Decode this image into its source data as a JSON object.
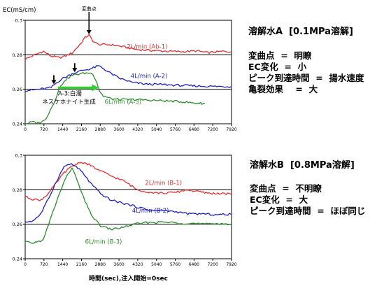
{
  "chart_data": [
    {
      "type": "line",
      "ylabel": "EC(mS/cm)",
      "xlim": [
        0,
        7920
      ],
      "ylim": [
        0.24,
        0.3
      ],
      "x_ticks": [
        0,
        720,
        1440,
        2160,
        2880,
        3600,
        4320,
        5040,
        5760,
        6480,
        7200,
        7920
      ],
      "y_ticks": [
        0.24,
        0.26,
        0.28,
        0.3
      ],
      "y_tick_labels": [
        "0.24",
        "0.26",
        "0.28",
        "0.3"
      ],
      "gridlines_y": [
        0.26,
        0.28
      ],
      "series": [
        {
          "name": "2L/min (Ab-1)",
          "color": "#e03030",
          "label_at": [
            3900,
            0.2835
          ],
          "anchors": [
            [
              0,
              0.2775
            ],
            [
              200,
              0.2788
            ],
            [
              500,
              0.2808
            ],
            [
              700,
              0.282
            ],
            [
              1000,
              0.2792
            ],
            [
              1300,
              0.2783
            ],
            [
              1500,
              0.279
            ],
            [
              1800,
              0.281
            ],
            [
              2100,
              0.286
            ],
            [
              2300,
              0.29
            ],
            [
              2450,
              0.2915
            ],
            [
              2600,
              0.288
            ],
            [
              2800,
              0.286
            ],
            [
              3300,
              0.2858
            ],
            [
              3700,
              0.2848
            ],
            [
              4320,
              0.283
            ],
            [
              5200,
              0.2822
            ],
            [
              6000,
              0.2818
            ],
            [
              6600,
              0.2822
            ],
            [
              7000,
              0.2812
            ],
            [
              7600,
              0.282
            ],
            [
              7900,
              0.2818
            ]
          ]
        },
        {
          "name": "4L/min (A-2)",
          "color": "#2020c0",
          "label_at": [
            4050,
            0.2665
          ],
          "anchors": [
            [
              0,
              0.2592
            ],
            [
              400,
              0.2598
            ],
            [
              800,
              0.2605
            ],
            [
              1000,
              0.261
            ],
            [
              1100,
              0.2625
            ],
            [
              1400,
              0.266
            ],
            [
              1800,
              0.269
            ],
            [
              2200,
              0.271
            ],
            [
              2500,
              0.2718
            ],
            [
              2800,
              0.2735
            ],
            [
              2900,
              0.273
            ],
            [
              3200,
              0.27
            ],
            [
              3600,
              0.2665
            ],
            [
              4100,
              0.264
            ],
            [
              4600,
              0.263
            ],
            [
              5200,
              0.2628
            ],
            [
              6000,
              0.2622
            ],
            [
              6800,
              0.2618
            ],
            [
              7900,
              0.2615
            ]
          ]
        },
        {
          "name": "6L/min (A-3)",
          "color": "#2e8b2e",
          "label_at": [
            3050,
            0.2515
          ],
          "anchors": [
            [
              0,
              0.24
            ],
            [
              250,
              0.241
            ],
            [
              500,
              0.2405
            ],
            [
              750,
              0.242
            ],
            [
              900,
              0.246
            ],
            [
              1100,
              0.252
            ],
            [
              1300,
              0.26
            ],
            [
              1500,
              0.265
            ],
            [
              1800,
              0.268
            ],
            [
              2100,
              0.269
            ],
            [
              2400,
              0.2695
            ],
            [
              2600,
              0.269
            ],
            [
              2750,
              0.264
            ],
            [
              2850,
              0.259
            ],
            [
              3000,
              0.256
            ],
            [
              3300,
              0.2545
            ],
            [
              3600,
              0.254
            ],
            [
              4320,
              0.254
            ],
            [
              5000,
              0.2535
            ],
            [
              5800,
              0.253
            ],
            [
              6200,
              0.2525
            ],
            [
              6500,
              0.252
            ],
            [
              6900,
              0.2518
            ]
          ]
        }
      ],
      "annotations": [
        {
          "text": "変曲点",
          "at": [
            2450,
            0.2915
          ],
          "kind": "arrow-down-label"
        },
        {
          "at": [
            1100,
            0.2625
          ],
          "kind": "arrow-down"
        },
        {
          "at": [
            1900,
            0.2695
          ],
          "kind": "arrow-down"
        },
        {
          "text": "A-3:白濁",
          "at": [
            1260,
            0.2565
          ],
          "kind": "text"
        },
        {
          "text": "ネスケホナイト生成",
          "at": [
            650,
            0.2516
          ],
          "kind": "text"
        },
        {
          "at": [
            1260,
            0.2609
          ],
          "to": [
            2830,
            0.2609
          ],
          "kind": "green-arrow"
        }
      ]
    },
    {
      "type": "line",
      "xlabel": "時間(sec),注入開始=0sec",
      "xlim": [
        0,
        7920
      ],
      "ylim": [
        0.24,
        0.3
      ],
      "x_ticks": [
        0,
        720,
        1440,
        2160,
        2880,
        3600,
        4320,
        5040,
        5760,
        6480,
        7200,
        7920
      ],
      "y_ticks": [
        0.24,
        0.26,
        0.28,
        0.3
      ],
      "y_tick_labels": [
        "0.24",
        "0.26",
        "0.28",
        "0.3"
      ],
      "gridlines_y": [
        0.26,
        0.28
      ],
      "series": [
        {
          "name": "2L/min (B-1)",
          "color": "#e03030",
          "label_at": [
            4600,
            0.2827
          ],
          "anchors": [
            [
              0,
              0.276
            ],
            [
              300,
              0.2745
            ],
            [
              600,
              0.274
            ],
            [
              900,
              0.278
            ],
            [
              1200,
              0.284
            ],
            [
              1500,
              0.29
            ],
            [
              1800,
              0.2935
            ],
            [
              2100,
              0.296
            ],
            [
              2400,
              0.295
            ],
            [
              2800,
              0.2915
            ],
            [
              3300,
              0.288
            ],
            [
              3800,
              0.285
            ],
            [
              4300,
              0.28
            ],
            [
              4800,
              0.2785
            ],
            [
              5300,
              0.278
            ],
            [
              5800,
              0.2785
            ],
            [
              6200,
              0.28
            ],
            [
              6600,
              0.279
            ],
            [
              7000,
              0.278
            ],
            [
              7400,
              0.2778
            ],
            [
              7900,
              0.2775
            ]
          ]
        },
        {
          "name": "4L/min (B-2)",
          "color": "#2020c0",
          "label_at": [
            4100,
            0.2668
          ],
          "anchors": [
            [
              0,
              0.2612
            ],
            [
              300,
              0.262
            ],
            [
              600,
              0.266
            ],
            [
              900,
              0.275
            ],
            [
              1200,
              0.285
            ],
            [
              1500,
              0.2935
            ],
            [
              1700,
              0.295
            ],
            [
              1900,
              0.294
            ],
            [
              2200,
              0.29
            ],
            [
              2500,
              0.284
            ],
            [
              2900,
              0.2775
            ],
            [
              3300,
              0.274
            ],
            [
              3800,
              0.272
            ],
            [
              4300,
              0.27
            ],
            [
              4800,
              0.268
            ],
            [
              5300,
              0.268
            ],
            [
              5800,
              0.2672
            ],
            [
              6300,
              0.266
            ],
            [
              6800,
              0.266
            ],
            [
              7300,
              0.2655
            ],
            [
              7900,
              0.2658
            ]
          ]
        },
        {
          "name": "6L/min (B-3)",
          "color": "#2e8b2e",
          "label_at": [
            2300,
            0.2488
          ],
          "anchors": [
            [
              0,
              0.25
            ],
            [
              200,
              0.249
            ],
            [
              400,
              0.2495
            ],
            [
              700,
              0.251
            ],
            [
              900,
              0.26
            ],
            [
              1200,
              0.273
            ],
            [
              1500,
              0.285
            ],
            [
              1800,
              0.293
            ],
            [
              2050,
              0.283
            ],
            [
              2300,
              0.273
            ],
            [
              2600,
              0.264
            ],
            [
              2900,
              0.259
            ],
            [
              3300,
              0.257
            ],
            [
              3700,
              0.258
            ],
            [
              4200,
              0.26
            ],
            [
              4700,
              0.261
            ],
            [
              5300,
              0.2612
            ],
            [
              5800,
              0.2608
            ],
            [
              6400,
              0.2605
            ],
            [
              6900,
              0.26
            ],
            [
              7400,
              0.2605
            ],
            [
              7900,
              0.26
            ]
          ]
        }
      ]
    }
  ],
  "panels": [
    {
      "title": "溶解水A  [0.1MPa溶解]",
      "lines": [
        "変曲点  =  明瞭",
        "EC変化  =  小",
        "ピーク到達時間  =  揚水速度",
        "亀裂効果    =  大"
      ]
    },
    {
      "title": "溶解水B  [0.8MPa溶解]",
      "lines": [
        "変曲点  =  不明瞭",
        "EC変化  =  大",
        "ピーク到達時間  =  ほぼ同じ"
      ]
    }
  ]
}
